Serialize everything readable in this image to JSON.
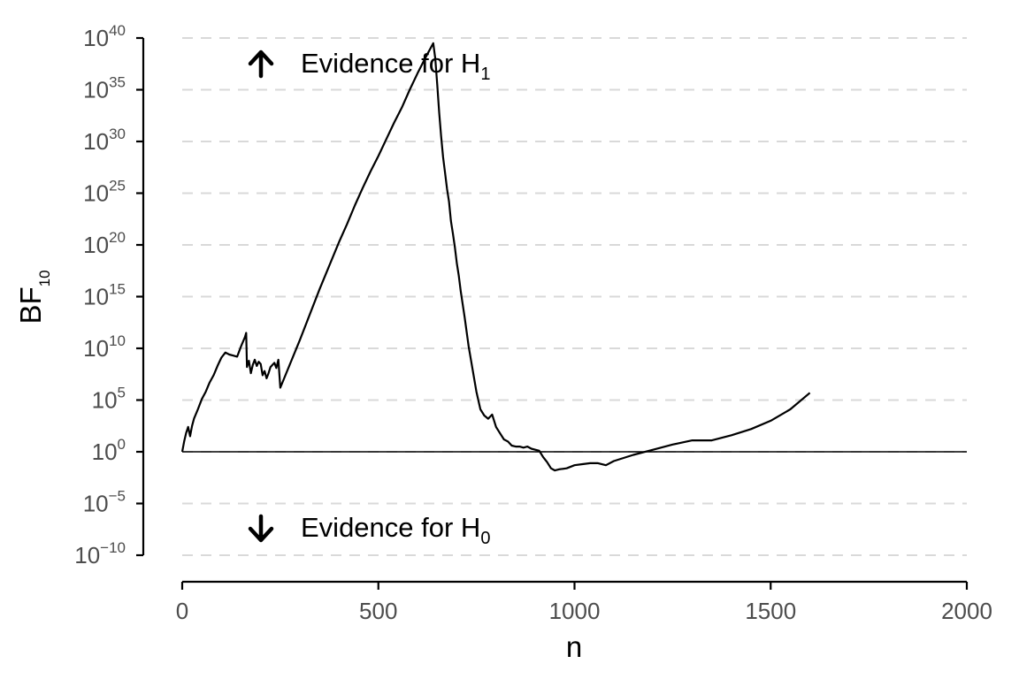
{
  "chart_data": {
    "type": "line",
    "xlabel": "n",
    "ylabel": "BF",
    "ylabel_sub": "10",
    "scale": "log10",
    "xlim": [
      0,
      2000
    ],
    "ylim_exponent": [
      -10,
      40
    ],
    "x_ticks": [
      "0",
      "500",
      "1000",
      "1500",
      "2000"
    ],
    "y_ticks": [
      {
        "base": "10",
        "exp": "40"
      },
      {
        "base": "10",
        "exp": "35"
      },
      {
        "base": "10",
        "exp": "30"
      },
      {
        "base": "10",
        "exp": "25"
      },
      {
        "base": "10",
        "exp": "20"
      },
      {
        "base": "10",
        "exp": "15"
      },
      {
        "base": "10",
        "exp": "10"
      },
      {
        "base": "10",
        "exp": "5"
      },
      {
        "base": "10",
        "exp": "0"
      },
      {
        "base": "10",
        "exp": "−5"
      },
      {
        "base": "10",
        "exp": "−10"
      }
    ],
    "grid": "horizontal-dashed",
    "reference_line_exponent": 0,
    "annotations": {
      "top": {
        "text": "Evidence for H",
        "sub": "1"
      },
      "bottom": {
        "text": "Evidence for H",
        "sub": "0"
      }
    },
    "series": [
      {
        "x": [
          0,
          5,
          10,
          15,
          20,
          25,
          30,
          40,
          50,
          60,
          70,
          80,
          90,
          100,
          110,
          120,
          130,
          140,
          150,
          160,
          163,
          165,
          170,
          175,
          180,
          185,
          190,
          195,
          200,
          205,
          210,
          215,
          220,
          225,
          230,
          235,
          240,
          245,
          250,
          300,
          350,
          400,
          420,
          440,
          460,
          480,
          500,
          520,
          540,
          560,
          580,
          600,
          620,
          640,
          645,
          650,
          655,
          660,
          665,
          670,
          675,
          680,
          685,
          690,
          695,
          700,
          705,
          710,
          720,
          730,
          740,
          750,
          760,
          770,
          780,
          790,
          800,
          810,
          820,
          830,
          840,
          850,
          860,
          870,
          880,
          890,
          900,
          910,
          920,
          930,
          940,
          950,
          960,
          980,
          1000,
          1020,
          1040,
          1060,
          1080,
          1100,
          1150,
          1200,
          1250,
          1300,
          1350,
          1400,
          1450,
          1500,
          1550,
          1600
        ],
        "y_log10": [
          0,
          1,
          1.8,
          2.4,
          1.5,
          2.5,
          3.2,
          4.1,
          5.1,
          5.8,
          6.7,
          7.4,
          8.3,
          9.1,
          9.6,
          9.4,
          9.3,
          9.2,
          10.2,
          11.1,
          11.5,
          8.2,
          8.8,
          7.6,
          8.4,
          8.9,
          8.3,
          8.7,
          8.5,
          7.4,
          7.8,
          7.1,
          7.6,
          8.2,
          8.4,
          8.6,
          8.1,
          8.9,
          6.2,
          10.8,
          15.7,
          20.3,
          22.0,
          23.8,
          25.5,
          27.1,
          28.6,
          30.2,
          31.8,
          33.3,
          35.0,
          36.6,
          38.1,
          39.5,
          38.0,
          35.5,
          32.8,
          30.5,
          28.5,
          27.0,
          25.4,
          24.2,
          22.3,
          21.1,
          19.8,
          18.2,
          17.0,
          15.5,
          13.0,
          10.2,
          8.0,
          5.8,
          4.1,
          3.5,
          3.2,
          3.6,
          2.4,
          1.8,
          1.2,
          1.0,
          0.6,
          0.5,
          0.5,
          0.4,
          0.5,
          0.3,
          0.2,
          0.1,
          -0.5,
          -1.0,
          -1.6,
          -1.8,
          -1.7,
          -1.6,
          -1.3,
          -1.2,
          -1.1,
          -1.1,
          -1.3,
          -0.9,
          -0.3,
          0.2,
          0.7,
          1.1,
          1.1,
          1.6,
          2.2,
          3.0,
          4.1,
          5.7
        ]
      }
    ]
  }
}
